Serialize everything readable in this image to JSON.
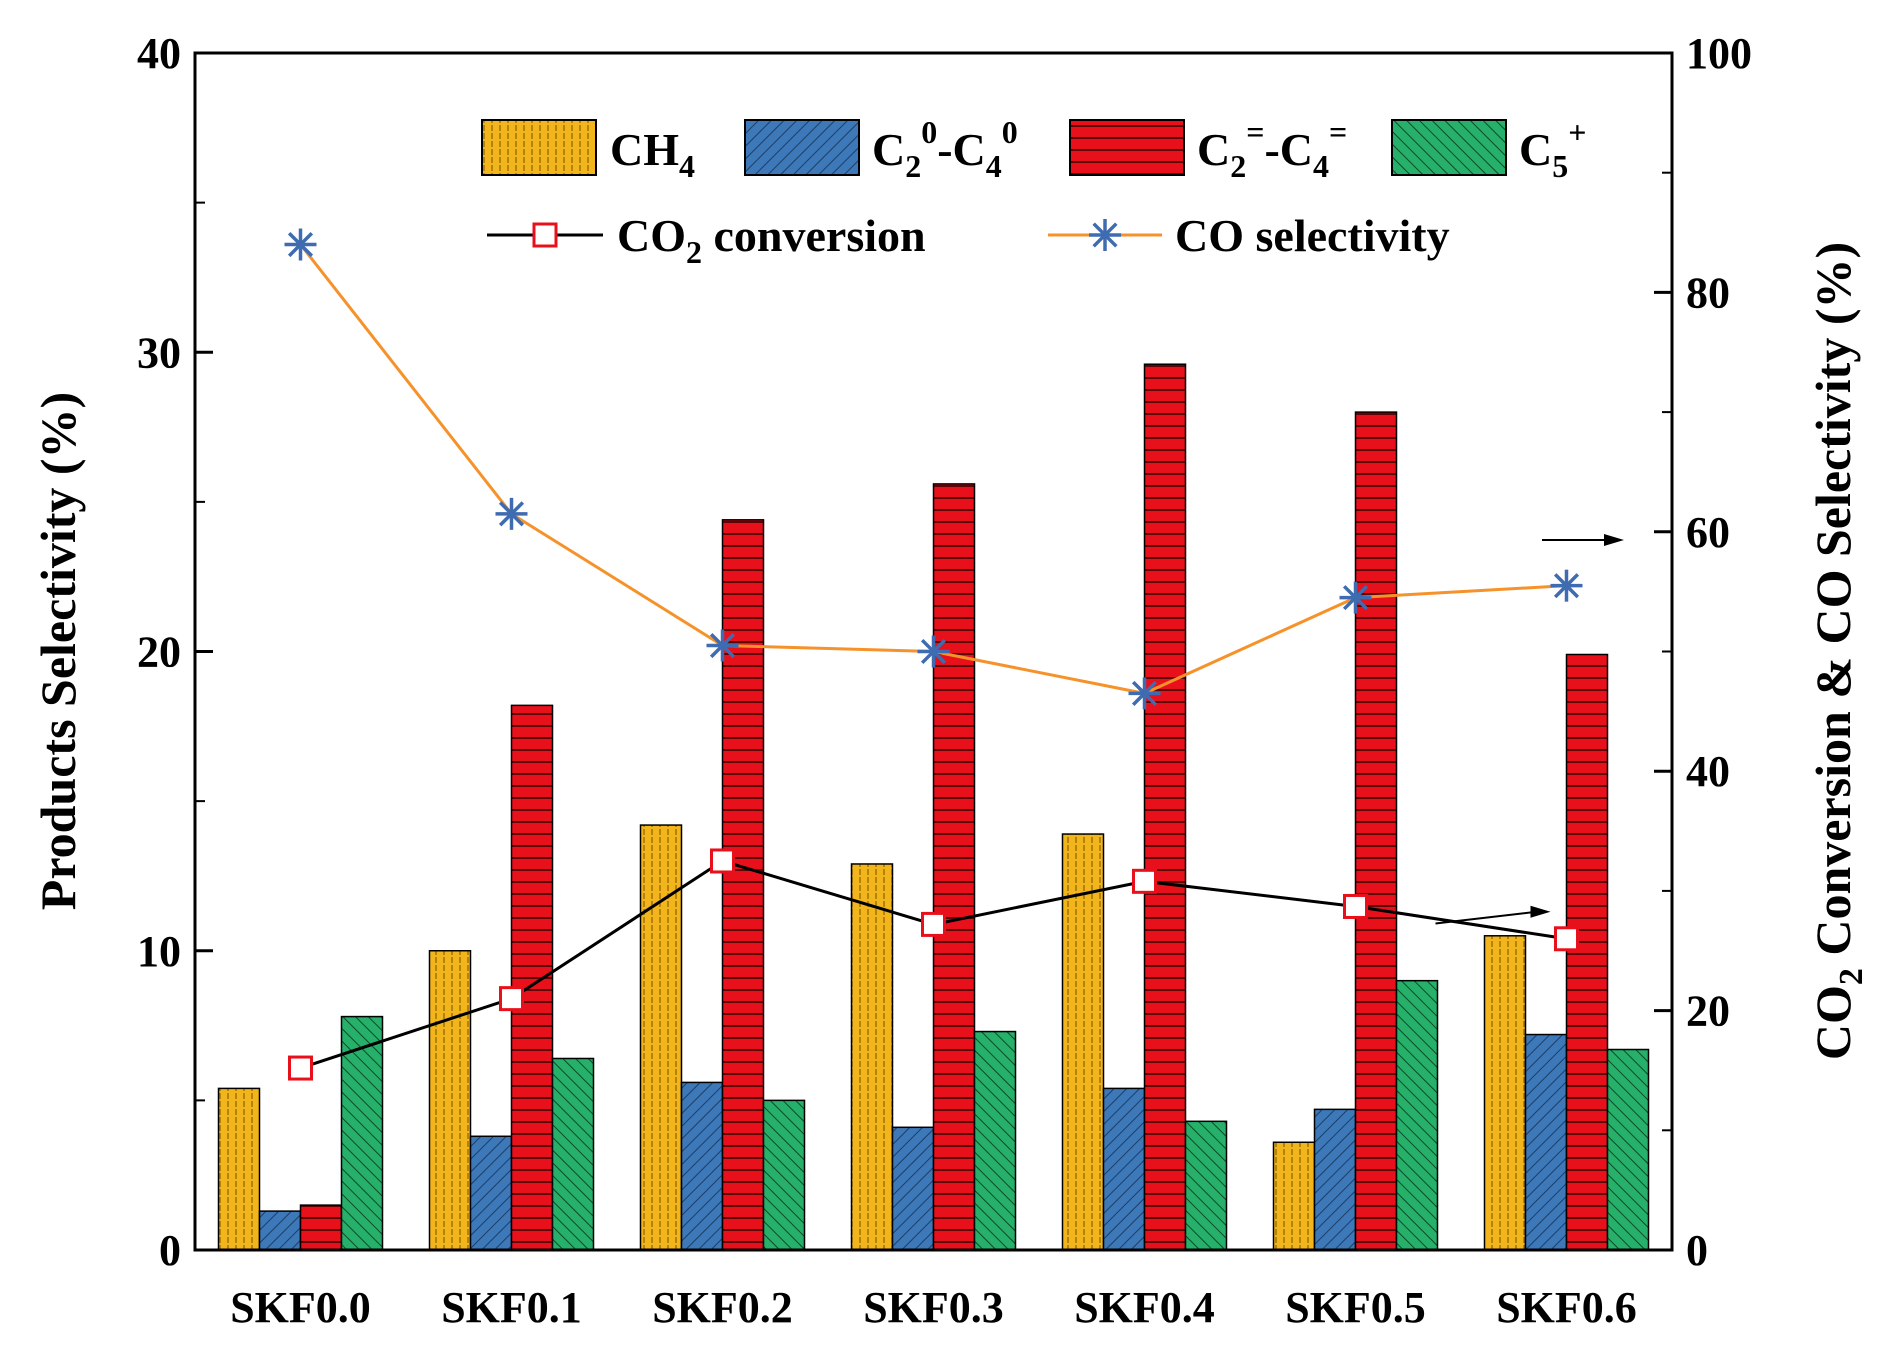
{
  "chart_data": {
    "type": "bar",
    "categories": [
      "SKF0.0",
      "SKF0.1",
      "SKF0.2",
      "SKF0.3",
      "SKF0.4",
      "SKF0.5",
      "SKF0.6"
    ],
    "series": [
      {
        "name": "CH4",
        "legend_main": "CH",
        "legend_sub": "4",
        "legend_sup": "",
        "legend_tail": "",
        "color": "#F2B51C",
        "pattern": "vertical",
        "values": [
          5.4,
          10.0,
          14.2,
          12.9,
          13.9,
          3.6,
          10.5
        ]
      },
      {
        "name": "C2⁰-C4⁰",
        "legend_main": "C",
        "legend_sub": "2",
        "legend_sup": "0",
        "legend_tail": "-C",
        "legend_sub2": "4",
        "legend_sup2": "0",
        "color": "#3D78B8",
        "pattern": "diag-right",
        "values": [
          1.3,
          3.8,
          5.6,
          4.1,
          5.4,
          4.7,
          7.2
        ]
      },
      {
        "name": "C2=-C4=",
        "legend_main": "C",
        "legend_sub": "2",
        "legend_sup": "=",
        "legend_tail": "-C",
        "legend_sub2": "4",
        "legend_sup2": "=",
        "color": "#E8101B",
        "pattern": "horizontal",
        "values": [
          1.5,
          18.2,
          24.4,
          25.6,
          29.6,
          28.0,
          19.9
        ]
      },
      {
        "name": "C5+",
        "legend_main": "C",
        "legend_sub": "5",
        "legend_sup": "+",
        "legend_tail": "",
        "color": "#26B06A",
        "pattern": "diag-left",
        "values": [
          7.8,
          6.4,
          5.0,
          7.3,
          4.3,
          9.0,
          6.7
        ]
      }
    ],
    "lines": [
      {
        "name": "CO2 conversion",
        "legend_a": "CO",
        "legend_sub": "2",
        "legend_b": " conversion",
        "line_color": "#000000",
        "marker": "square",
        "marker_color": "#E8101B",
        "values": [
          15.2,
          21.0,
          32.5,
          27.2,
          30.8,
          28.7,
          26.0
        ]
      },
      {
        "name": "CO selectivity",
        "legend_a": "CO selectivity",
        "legend_sub": "",
        "legend_b": "",
        "line_color": "#F5922A",
        "marker": "asterisk",
        "marker_color": "#3F6CB0",
        "values": [
          84.0,
          61.5,
          50.5,
          50.0,
          46.5,
          54.5,
          55.5
        ]
      }
    ],
    "ylabel": "Products Selectivity (%)",
    "y2label_a": "CO",
    "y2label_sub": "2",
    "y2label_b": " Conversion & CO  Selectivity (%)",
    "ylim": [
      0,
      40
    ],
    "y2lim": [
      0,
      100
    ],
    "yticks": [
      0,
      10,
      20,
      30,
      40
    ],
    "y2ticks": [
      0,
      20,
      40,
      60,
      80,
      100
    ],
    "legend_position": "top-right"
  }
}
